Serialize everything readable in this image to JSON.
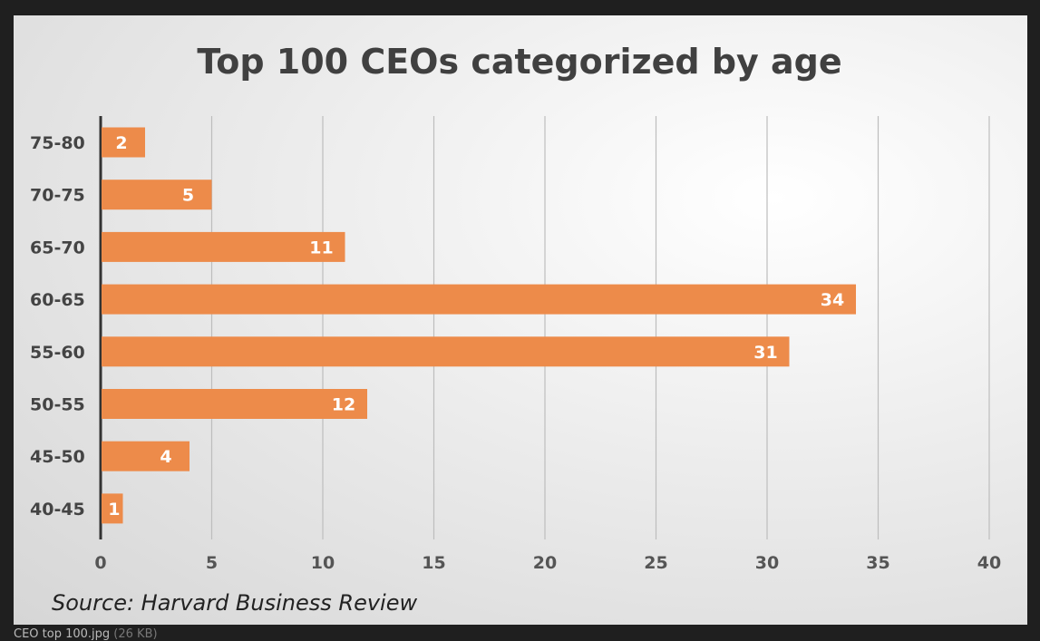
{
  "caption": {
    "filename": "CEO top 100.jpg",
    "size": "(26 KB)"
  },
  "chart_data": {
    "type": "bar",
    "orientation": "horizontal",
    "title": "Top 100 CEOs categorized by age",
    "categories": [
      "75-80",
      "70-75",
      "65-70",
      "60-65",
      "55-60",
      "50-55",
      "45-50",
      "40-45"
    ],
    "values": [
      2,
      5,
      11,
      34,
      31,
      12,
      4,
      1
    ],
    "xlim": [
      0,
      40
    ],
    "xticks": [
      0,
      5,
      10,
      15,
      20,
      25,
      30,
      35,
      40
    ],
    "grid": "vertical",
    "data_labels": true,
    "source": "Source: Harvard Business Review",
    "colors": {
      "bar": "#ed8b4a",
      "label": "#ffffff",
      "text": "#404040"
    }
  }
}
